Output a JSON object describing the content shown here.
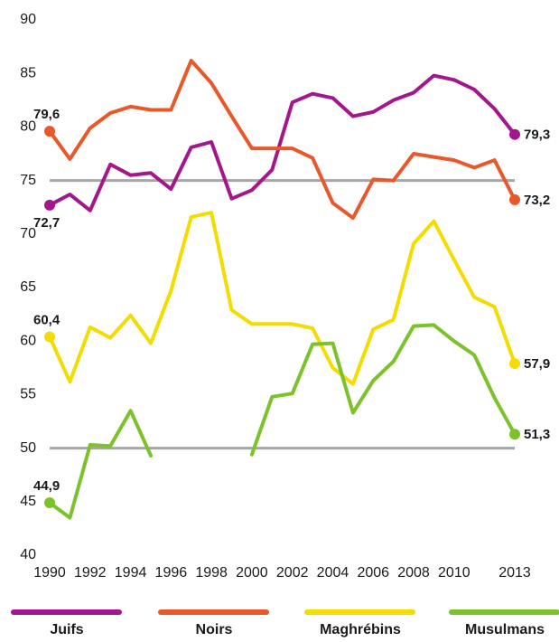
{
  "chart_data": {
    "type": "line",
    "x": [
      1990,
      1991,
      1992,
      1993,
      1994,
      1995,
      1996,
      1997,
      1998,
      1999,
      2000,
      2001,
      2002,
      2003,
      2004,
      2005,
      2006,
      2007,
      2008,
      2009,
      2010,
      2011,
      2012,
      2013
    ],
    "xlim": [
      1990,
      2013
    ],
    "xticks": [
      1990,
      1992,
      1994,
      1996,
      1998,
      2000,
      2002,
      2004,
      2006,
      2008,
      2010,
      2013
    ],
    "ylim": [
      40,
      90
    ],
    "yticks": [
      40,
      45,
      50,
      55,
      60,
      65,
      70,
      75,
      80,
      85,
      90
    ],
    "reference_lines": [
      50,
      75
    ],
    "series": [
      {
        "name": "Juifs",
        "color": "#a3168c",
        "values": [
          72.7,
          73.7,
          72.2,
          76.5,
          75.5,
          75.7,
          74.2,
          78.1,
          78.6,
          73.3,
          74.1,
          76,
          82.3,
          83.1,
          82.7,
          81,
          81.4,
          82.5,
          83.2,
          84.8,
          84.4,
          83.5,
          81.7,
          79.3
        ],
        "value_labels": [
          "72,7",
          null,
          null,
          null,
          null,
          null,
          null,
          null,
          null,
          null,
          null,
          null,
          null,
          null,
          null,
          null,
          null,
          null,
          null,
          null,
          null,
          null,
          null,
          "79,3"
        ]
      },
      {
        "name": "Noirs",
        "color": "#e8582a",
        "values": [
          79.6,
          77,
          79.9,
          81.3,
          81.9,
          81.6,
          81.6,
          86.2,
          84.1,
          81,
          78,
          78,
          78,
          77.1,
          72.9,
          71.5,
          75.1,
          75,
          77.5,
          77.2,
          76.9,
          76.2,
          76.9,
          73.2
        ],
        "value_labels": [
          "79,6",
          null,
          null,
          null,
          null,
          null,
          null,
          null,
          null,
          null,
          null,
          null,
          null,
          null,
          null,
          null,
          null,
          null,
          null,
          null,
          null,
          null,
          null,
          "73,2"
        ]
      },
      {
        "name": "Maghrébins",
        "color": "#f5dc00",
        "values": [
          60.4,
          56.2,
          61.3,
          60.3,
          62.4,
          59.8,
          64.7,
          71.6,
          72,
          62.9,
          61.6,
          61.6,
          61.6,
          61.2,
          57.5,
          56,
          61.1,
          62,
          69.1,
          71.2,
          67.6,
          64.1,
          63.2,
          57.9
        ],
        "value_labels": [
          "60,4",
          null,
          null,
          null,
          null,
          null,
          null,
          null,
          null,
          null,
          null,
          null,
          null,
          null,
          null,
          null,
          null,
          null,
          null,
          null,
          null,
          null,
          null,
          "57,9"
        ]
      },
      {
        "name": "Musulmans",
        "color": "#7cc22a",
        "values": [
          44.9,
          43.5,
          50.3,
          50.2,
          53.5,
          49.3,
          null,
          null,
          null,
          null,
          49.4,
          54.8,
          55.1,
          59.7,
          59.8,
          53.3,
          56.3,
          58.1,
          61.4,
          61.5,
          60,
          58.7,
          54.7,
          51.3
        ],
        "value_labels": [
          "44,9",
          null,
          null,
          null,
          null,
          null,
          null,
          null,
          null,
          null,
          null,
          null,
          null,
          null,
          null,
          null,
          null,
          null,
          null,
          null,
          null,
          null,
          null,
          "51,3"
        ]
      }
    ]
  }
}
